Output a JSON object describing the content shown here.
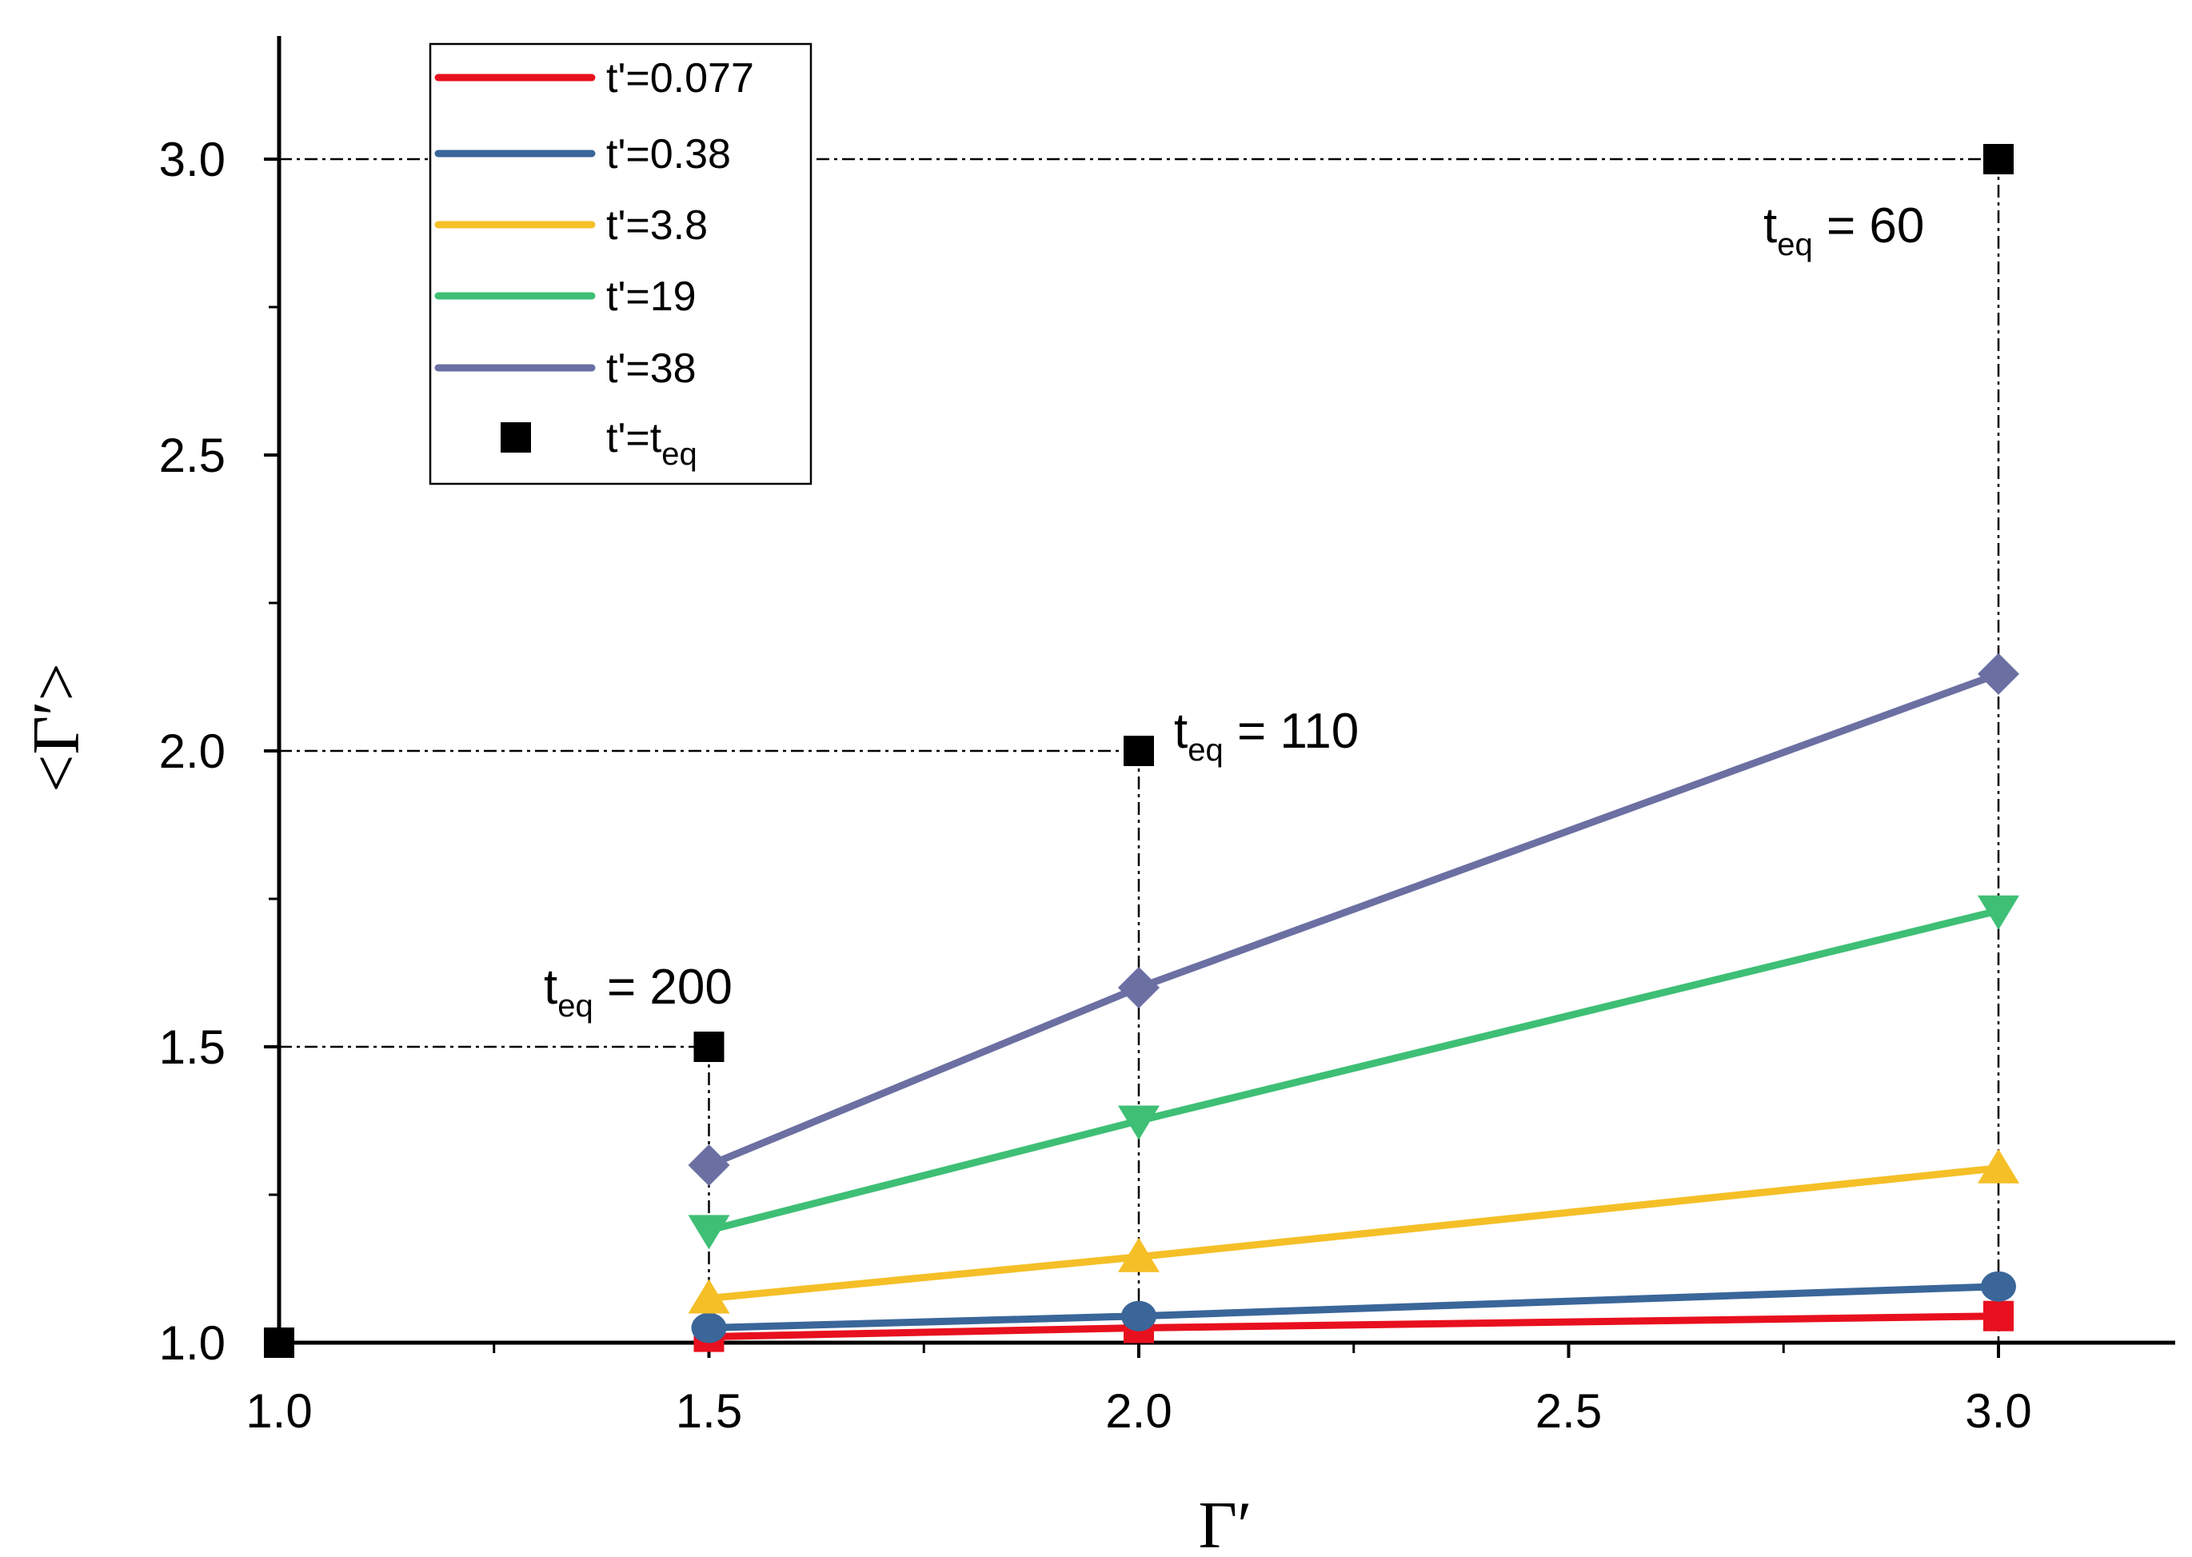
{
  "chart_data": {
    "type": "line",
    "xlabel": "Γ′",
    "ylabel": "<Γ′>",
    "xlim": [
      1.0,
      3.2
    ],
    "ylim": [
      1.0,
      3.2
    ],
    "x_ticks": [
      "1.0",
      "1.5",
      "2.0",
      "2.5",
      "3.0"
    ],
    "y_ticks": [
      "1.0",
      "1.5",
      "2.0",
      "2.5",
      "3.0"
    ],
    "x": [
      1.5,
      2.0,
      3.0
    ],
    "series": [
      {
        "name": "t'=0.077",
        "color": "#e8101e",
        "marker": "square",
        "values": [
          1.01,
          1.025,
          1.045
        ]
      },
      {
        "name": "t'=0.38",
        "color": "#3a6699",
        "marker": "circle",
        "values": [
          1.025,
          1.045,
          1.095
        ]
      },
      {
        "name": "t'=3.8",
        "color": "#f5bf27",
        "marker": "triangle-up",
        "values": [
          1.075,
          1.145,
          1.295
        ]
      },
      {
        "name": "t'=19",
        "color": "#3ebf75",
        "marker": "triangle-down",
        "values": [
          1.19,
          1.375,
          1.73
        ]
      },
      {
        "name": "t'=38",
        "color": "#6b6fa2",
        "marker": "diamond",
        "values": [
          1.3,
          1.6,
          2.13
        ]
      }
    ],
    "equilibrium": {
      "name_prefix": "t'=t",
      "name_sub": "eq",
      "color": "#000000",
      "marker": "square",
      "x": [
        1.0,
        1.5,
        2.0,
        3.0
      ],
      "y": [
        1.0,
        1.5,
        2.0,
        3.0
      ]
    },
    "annotations": [
      {
        "prefix": "t",
        "sub": "eq",
        "text": " = 200"
      },
      {
        "prefix": "t",
        "sub": "eq",
        "text": " = 110"
      },
      {
        "prefix": "t",
        "sub": "eq",
        "text": " = 60"
      }
    ]
  }
}
